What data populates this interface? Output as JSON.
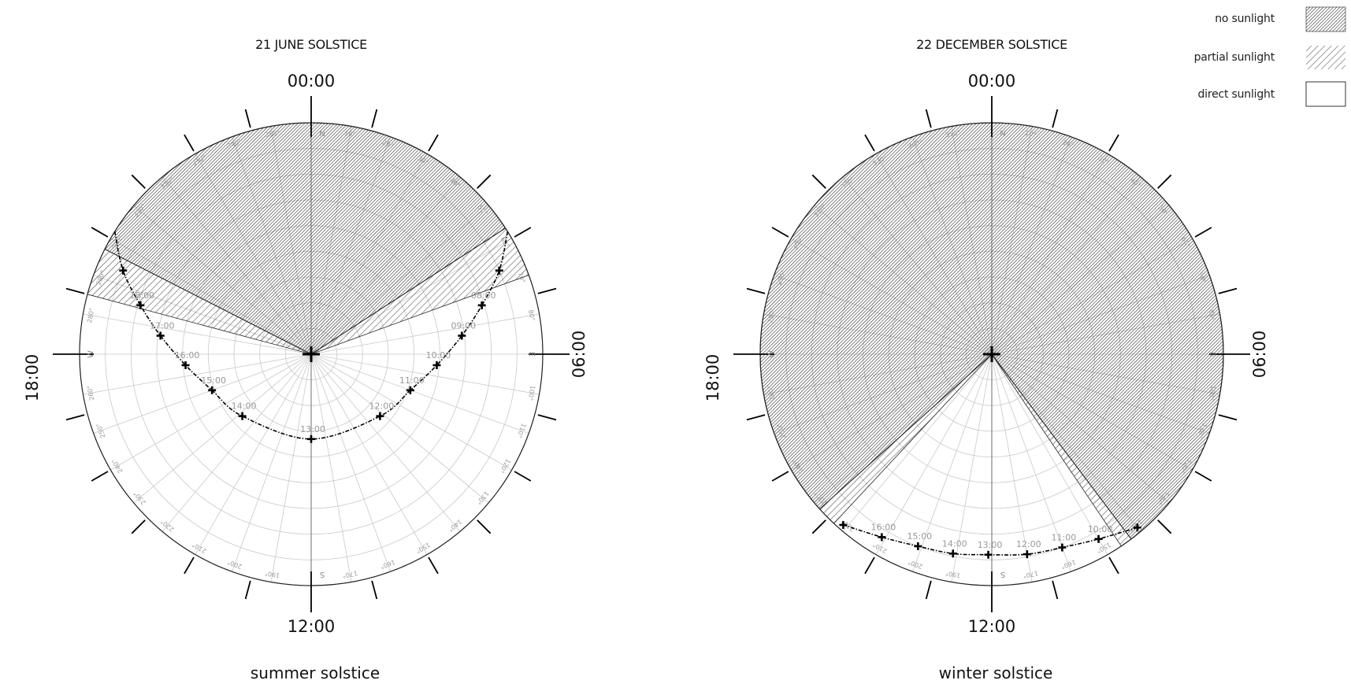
{
  "legend": [
    {
      "label": "no sunlight",
      "pattern": "dense-hatch"
    },
    {
      "label": "partial sunlight",
      "pattern": "sparse-hatch"
    },
    {
      "label": "direct sunlight",
      "pattern": "blank"
    }
  ],
  "cardinals": {
    "n": "N",
    "e": "E",
    "s": "S",
    "w": "W"
  },
  "degree_labels": [
    "10°",
    "20°",
    "30°",
    "40°",
    "50°",
    "60°",
    "70°",
    "80°",
    "90°",
    "100°",
    "110°",
    "120°",
    "130°",
    "140°",
    "150°",
    "160°",
    "170°",
    "180°",
    "190°",
    "200°",
    "210°",
    "220°",
    "230°",
    "240°",
    "250°",
    "260°",
    "270°",
    "280°",
    "290°",
    "300°",
    "310°",
    "320°",
    "330°",
    "340°",
    "350°"
  ],
  "charts": [
    {
      "title": "21 JUNE SOLSTICE",
      "caption": "summer solstice",
      "hours": {
        "top": "00:00",
        "right": "06:00",
        "bottom": "12:00",
        "left": "18:00"
      },
      "no_sunlight_wedge_deg": [
        297,
        57
      ],
      "partial_wedges_deg": [
        [
          285,
          297
        ],
        [
          57,
          70
        ]
      ],
      "sun_path": [
        {
          "azimuth": 58,
          "altitude": 0
        },
        {
          "azimuth": 66,
          "altitude": 10
        },
        {
          "azimuth": 74,
          "altitude": 21,
          "time": "08:00"
        },
        {
          "azimuth": 83,
          "altitude": 31,
          "time": "09:00"
        },
        {
          "azimuth": 95,
          "altitude": 41,
          "time": "10:00"
        },
        {
          "azimuth": 110,
          "altitude": 49,
          "time": "11:00"
        },
        {
          "azimuth": 132,
          "altitude": 54,
          "time": "12:00"
        },
        {
          "azimuth": 180,
          "altitude": 57,
          "time": "13:00"
        },
        {
          "azimuth": 228,
          "altitude": 54,
          "time": "14:00"
        },
        {
          "azimuth": 250,
          "altitude": 49,
          "time": "15:00"
        },
        {
          "azimuth": 265,
          "altitude": 41,
          "time": "16:00"
        },
        {
          "azimuth": 277,
          "altitude": 31,
          "time": "17:00"
        },
        {
          "azimuth": 286,
          "altitude": 21,
          "time": "18:00"
        },
        {
          "azimuth": 294,
          "altitude": 10
        },
        {
          "azimuth": 302,
          "altitude": 0
        }
      ]
    },
    {
      "title": "22 DECEMBER SOLSTICE",
      "caption": "winter solstice",
      "hours": {
        "top": "00:00",
        "right": "06:00",
        "bottom": "12:00",
        "left": "18:00"
      },
      "no_sunlight_wedge_deg": [
        228,
        143
      ],
      "partial_wedges_deg": [
        [
          223,
          228
        ],
        [
          143,
          146
        ]
      ],
      "sun_path": [
        {
          "azimuth": 140,
          "altitude": 2
        },
        {
          "azimuth": 150,
          "altitude": 7,
          "time": "10:00"
        },
        {
          "azimuth": 160,
          "altitude": 10,
          "time": "11:00"
        },
        {
          "azimuth": 170,
          "altitude": 11,
          "time": "12:00"
        },
        {
          "azimuth": 181,
          "altitude": 12,
          "time": "13:00"
        },
        {
          "azimuth": 191,
          "altitude": 11,
          "time": "14:00"
        },
        {
          "azimuth": 201,
          "altitude": 10,
          "time": "15:00"
        },
        {
          "azimuth": 211,
          "altitude": 7,
          "time": "16:00"
        },
        {
          "azimuth": 221,
          "altitude": 2
        }
      ]
    }
  ]
}
